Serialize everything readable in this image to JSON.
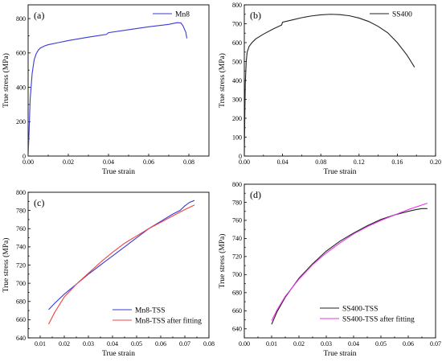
{
  "chart_data": [
    {
      "panel_label": "(a)",
      "type": "line",
      "xlabel": "True strain",
      "ylabel": "True stress (MPa)",
      "xlim": [
        0,
        0.09
      ],
      "ylim": [
        0,
        880
      ],
      "xticks": [
        0,
        0.02,
        0.04,
        0.06,
        0.08
      ],
      "xtick_labels": [
        "0.00",
        "0.02",
        "0.04",
        "0.06",
        "0.08"
      ],
      "yticks": [
        0,
        200,
        400,
        600,
        800
      ],
      "ytick_labels": [
        "0",
        "200",
        "400",
        "600",
        "800"
      ],
      "legend_position": "top-right",
      "grid": false,
      "series": [
        {
          "name": "Mn8",
          "color": "#3a3ad6",
          "x": [
            0,
            0.0005,
            0.001,
            0.002,
            0.003,
            0.004,
            0.005,
            0.006,
            0.008,
            0.01,
            0.015,
            0.02,
            0.03,
            0.039,
            0.04,
            0.05,
            0.06,
            0.07,
            0.074,
            0.076,
            0.077,
            0.0785,
            0.079
          ],
          "y": [
            0,
            150,
            330,
            480,
            560,
            595,
            615,
            628,
            640,
            648,
            660,
            672,
            692,
            708,
            718,
            735,
            752,
            766,
            776,
            775,
            760,
            720,
            685
          ]
        }
      ]
    },
    {
      "panel_label": "(b)",
      "type": "line",
      "xlabel": "True strain",
      "ylabel": "True stress (MPa)",
      "xlim": [
        0,
        0.2
      ],
      "ylim": [
        0,
        800
      ],
      "xticks": [
        0,
        0.04,
        0.08,
        0.12,
        0.16,
        0.2
      ],
      "xtick_labels": [
        "0.00",
        "0.04",
        "0.08",
        "0.12",
        "0.16",
        "0.20"
      ],
      "yticks": [
        0,
        100,
        200,
        300,
        400,
        500,
        600,
        700,
        800
      ],
      "ytick_labels": [
        "0",
        "100",
        "200",
        "300",
        "400",
        "500",
        "600",
        "700",
        "800"
      ],
      "legend_position": "top-right",
      "grid": false,
      "series": [
        {
          "name": "SS400",
          "color": "#222222",
          "x": [
            0,
            0.0005,
            0.001,
            0.002,
            0.003,
            0.005,
            0.008,
            0.012,
            0.02,
            0.03,
            0.039,
            0.04,
            0.05,
            0.06,
            0.07,
            0.08,
            0.09,
            0.1,
            0.11,
            0.12,
            0.13,
            0.14,
            0.15,
            0.16,
            0.17,
            0.178
          ],
          "y": [
            0,
            200,
            380,
            500,
            550,
            580,
            600,
            620,
            645,
            672,
            693,
            708,
            720,
            732,
            741,
            747,
            750,
            748,
            742,
            730,
            712,
            686,
            652,
            600,
            535,
            470
          ]
        }
      ]
    },
    {
      "panel_label": "(c)",
      "type": "line",
      "xlabel": "True strain",
      "ylabel": "True stress (MPa)",
      "xlim": [
        0.005,
        0.08
      ],
      "ylim": [
        640,
        800
      ],
      "xticks": [
        0.01,
        0.02,
        0.03,
        0.04,
        0.05,
        0.06,
        0.07,
        0.08
      ],
      "xtick_labels": [
        "0.01",
        "0.02",
        "0.03",
        "0.04",
        "0.05",
        "0.06",
        "0.07",
        "0.08"
      ],
      "yticks": [
        640,
        660,
        680,
        700,
        720,
        740,
        760,
        780,
        800
      ],
      "ytick_labels": [
        "640",
        "660",
        "680",
        "700",
        "720",
        "740",
        "760",
        "780",
        "800"
      ],
      "legend_position": "bottom-right",
      "grid": false,
      "series": [
        {
          "name": "Mn8-TSS",
          "color": "#3a3ad6",
          "x": [
            0.0135,
            0.016,
            0.02,
            0.025,
            0.03,
            0.035,
            0.04,
            0.045,
            0.05,
            0.055,
            0.06,
            0.065,
            0.068,
            0.07,
            0.072,
            0.074
          ],
          "y": [
            671,
            678,
            688,
            699,
            710,
            720,
            730,
            740,
            750,
            760,
            768,
            776,
            780,
            785,
            789,
            791
          ]
        },
        {
          "name": "Mn8-TSS after fitting",
          "color": "#ee4444",
          "x": [
            0.0135,
            0.016,
            0.02,
            0.025,
            0.03,
            0.035,
            0.04,
            0.045,
            0.05,
            0.055,
            0.06,
            0.065,
            0.07,
            0.074
          ],
          "y": [
            655,
            668,
            685,
            699,
            711,
            723,
            734,
            744,
            752,
            760,
            767,
            774,
            781,
            786
          ]
        }
      ]
    },
    {
      "panel_label": "(d)",
      "type": "line",
      "xlabel": "True strain",
      "ylabel": "True stress (MPa)",
      "xlim": [
        0,
        0.07
      ],
      "ylim": [
        630,
        800
      ],
      "xticks": [
        0,
        0.01,
        0.02,
        0.03,
        0.04,
        0.05,
        0.06,
        0.07
      ],
      "xtick_labels": [
        "0.00",
        "0.01",
        "0.02",
        "0.03",
        "0.04",
        "0.05",
        "0.06",
        "0.07"
      ],
      "yticks": [
        640,
        660,
        680,
        700,
        720,
        740,
        760,
        780,
        800
      ],
      "ytick_labels": [
        "640",
        "660",
        "680",
        "700",
        "720",
        "740",
        "760",
        "780",
        "800"
      ],
      "legend_position": "bottom-right",
      "grid": false,
      "series": [
        {
          "name": "SS400-TSS",
          "color": "#222222",
          "x": [
            0.01,
            0.012,
            0.015,
            0.02,
            0.025,
            0.03,
            0.035,
            0.04,
            0.045,
            0.05,
            0.055,
            0.06,
            0.063,
            0.065,
            0.067
          ],
          "y": [
            645,
            659,
            675,
            696,
            712,
            726,
            737,
            746,
            754,
            761,
            766,
            770,
            772,
            773,
            773
          ]
        },
        {
          "name": "SS400-TSS after fitting",
          "color": "#e833e8",
          "x": [
            0.01,
            0.012,
            0.015,
            0.02,
            0.025,
            0.03,
            0.035,
            0.04,
            0.045,
            0.05,
            0.055,
            0.06,
            0.065,
            0.067
          ],
          "y": [
            649,
            661,
            676,
            695,
            711,
            724,
            735,
            745,
            753,
            760,
            766,
            772,
            777,
            779
          ]
        }
      ]
    }
  ]
}
